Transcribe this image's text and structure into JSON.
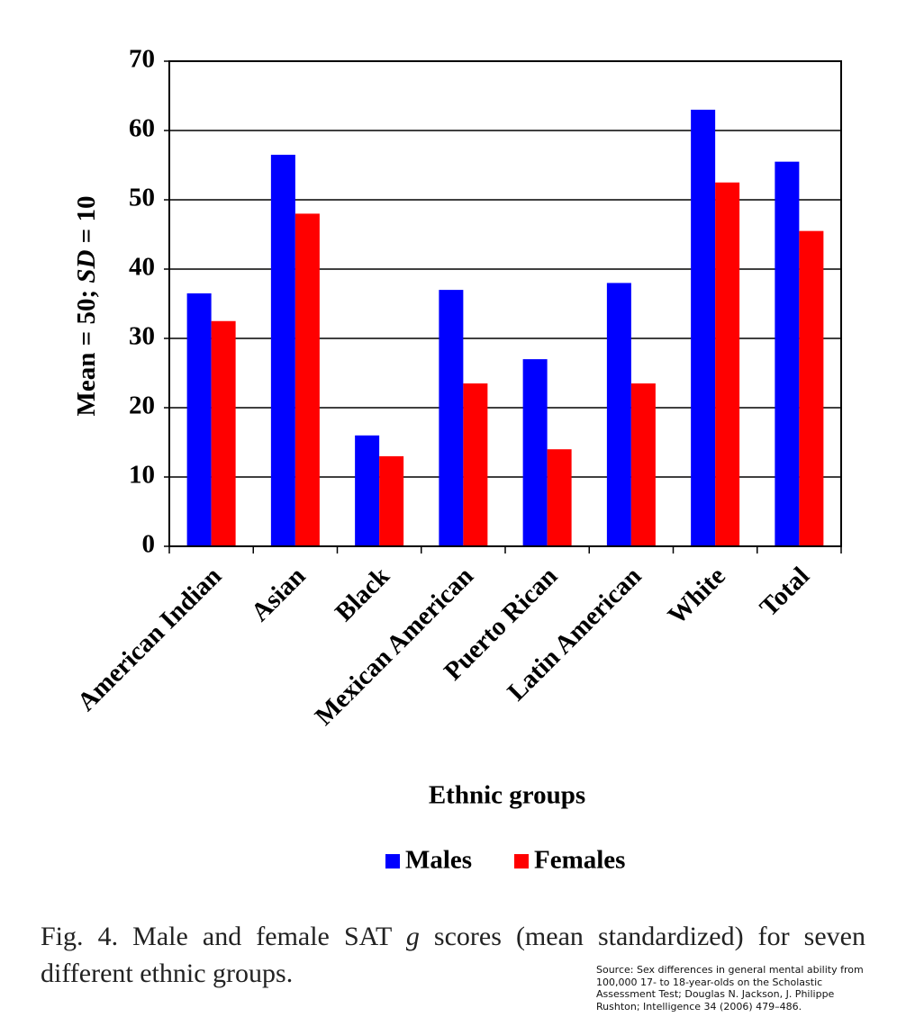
{
  "chart_data": {
    "type": "bar",
    "y_label": [
      "Mean = 50; ",
      "SD",
      " = 10"
    ],
    "x_label": "Ethnic groups",
    "categories": [
      "American Indian",
      "Asian",
      "Black",
      "Mexican American",
      "Puerto Rican",
      "Latin American",
      "White",
      "Total"
    ],
    "series": [
      {
        "name": "Males",
        "color": "#0000ff",
        "values": [
          36.5,
          56.5,
          16,
          37,
          27,
          38,
          63,
          55.5
        ]
      },
      {
        "name": "Females",
        "color": "#ff0000",
        "values": [
          32.5,
          48,
          13,
          23.5,
          14,
          23.5,
          52.5,
          45.5
        ]
      }
    ],
    "ylim": [
      0,
      70
    ],
    "yticks": [
      0,
      10,
      20,
      30,
      40,
      50,
      60,
      70
    ],
    "grid": true
  },
  "caption": [
    "Fig. 4. Male and female SAT ",
    "g",
    " scores (mean standardized) for seven different ethnic groups."
  ],
  "source": "Source: Sex differences in general mental ability from 100,000 17- to 18-year-olds on the Scholastic Assessment Test; Douglas N. Jackson, J. Philippe Rushton; Intelligence 34 (2006) 479–486."
}
